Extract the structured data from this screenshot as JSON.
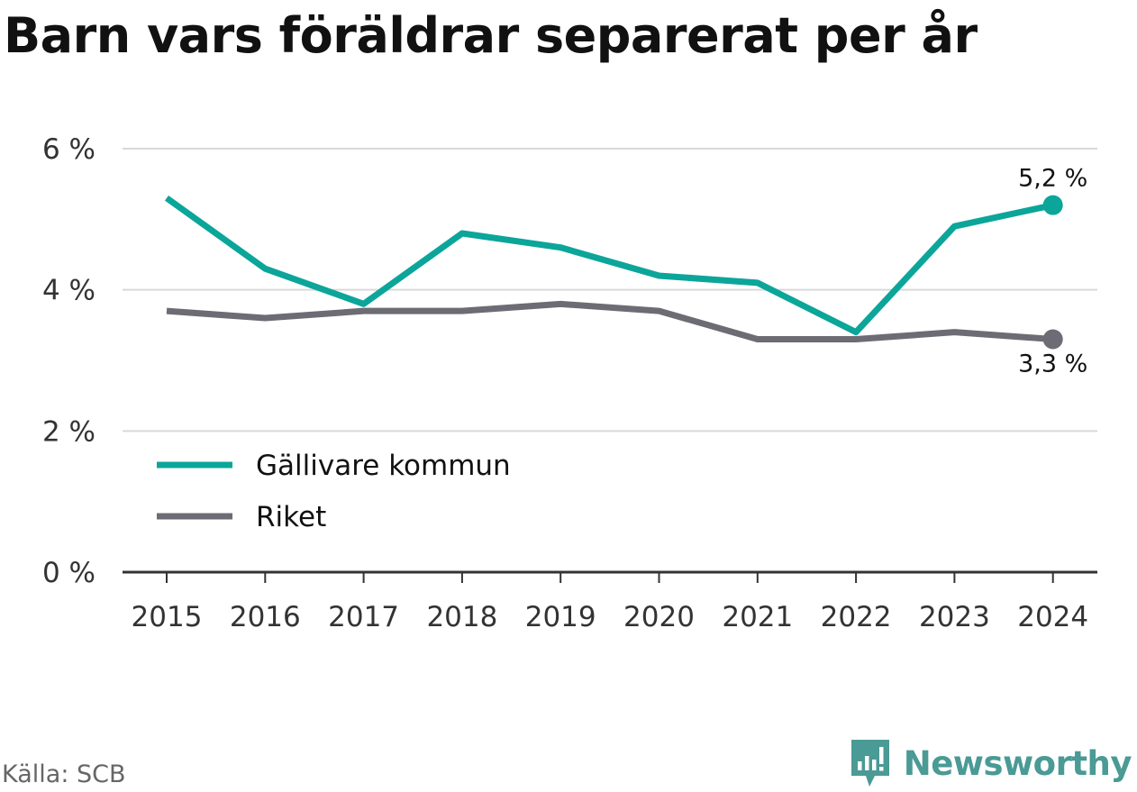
{
  "title": "Barn vars föräldrar separerat per år",
  "source": "Källa: SCB",
  "brand": {
    "name": "Newsworthy",
    "icon": "newsworthy-logo-icon",
    "color": "#4a9a95"
  },
  "chart_data": {
    "type": "line",
    "title": "Barn vars föräldrar separerat per år",
    "x": [
      "2015",
      "2016",
      "2017",
      "2018",
      "2019",
      "2020",
      "2021",
      "2022",
      "2023",
      "2024"
    ],
    "y_ticks": [
      0,
      2,
      4,
      6
    ],
    "y_tick_labels": [
      "0 %",
      "2 %",
      "4 %",
      "6 %"
    ],
    "ylim": [
      0,
      6
    ],
    "grid": true,
    "legend_position": "bottom-left",
    "series": [
      {
        "name": "Gällivare kommun",
        "color": "#0ca59a",
        "values": [
          5.3,
          4.3,
          3.8,
          4.8,
          4.6,
          4.2,
          4.1,
          3.4,
          4.9,
          5.2
        ],
        "end_label": "5,2 %"
      },
      {
        "name": "Riket",
        "color": "#6d6c74",
        "values": [
          3.7,
          3.6,
          3.7,
          3.7,
          3.8,
          3.7,
          3.3,
          3.3,
          3.4,
          3.3
        ],
        "end_label": "3,3 %"
      }
    ]
  }
}
